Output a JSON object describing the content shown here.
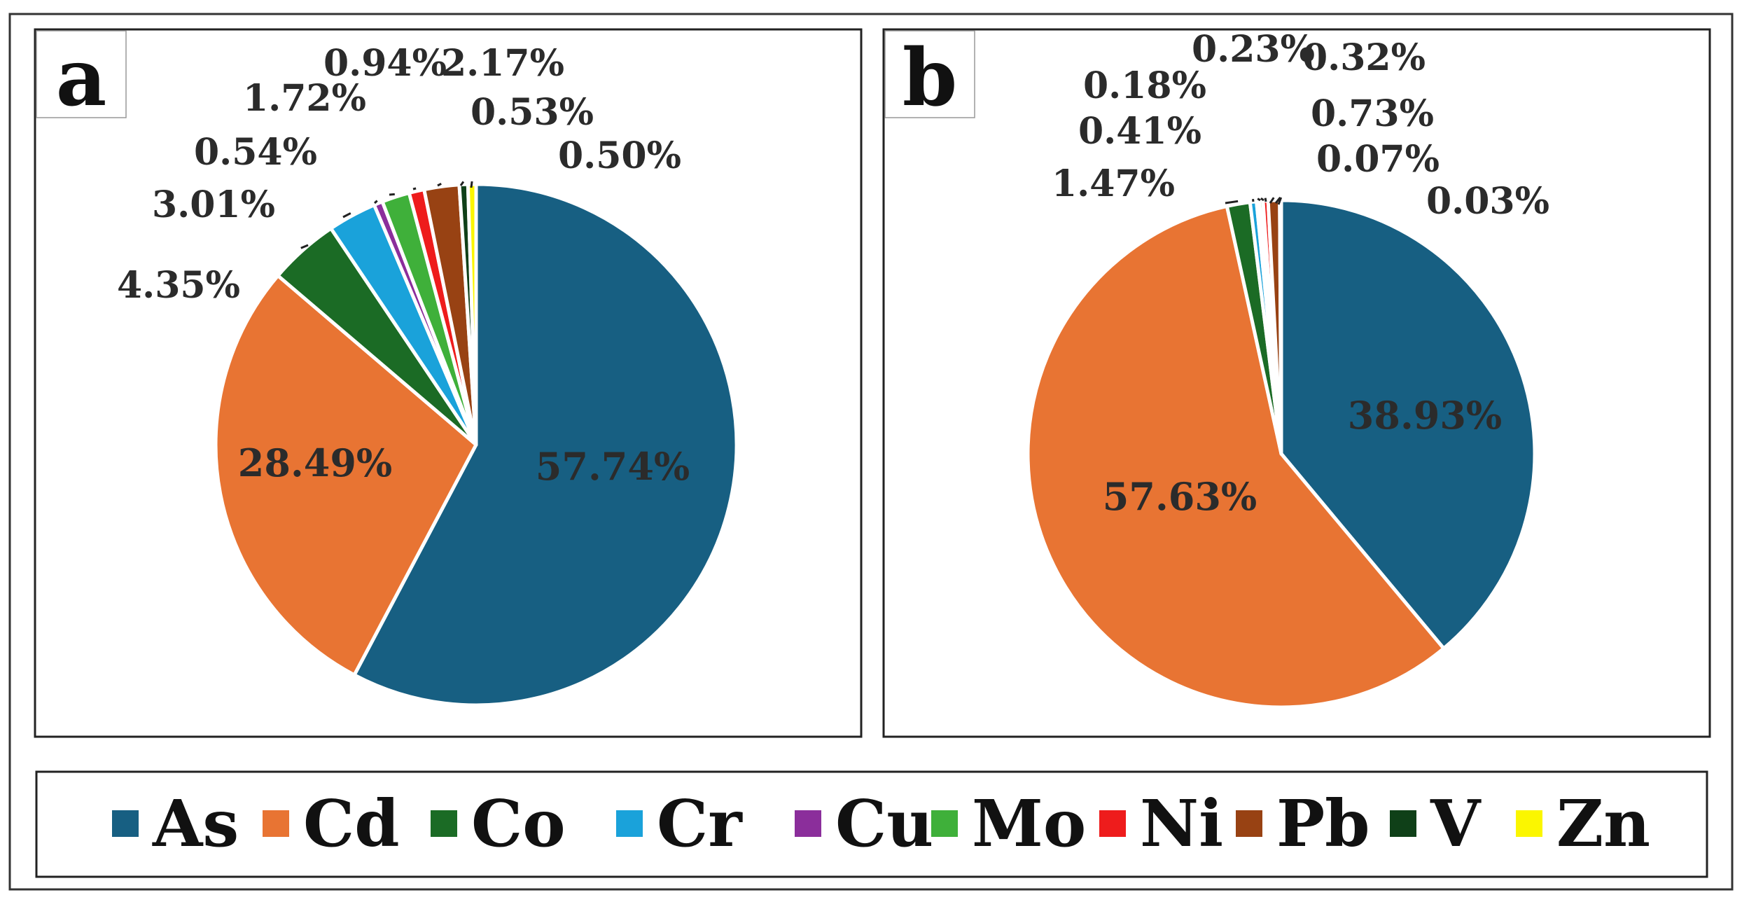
{
  "chart_data": [
    {
      "type": "pie",
      "panel_label": "a",
      "categories": [
        "As",
        "Cd",
        "Co",
        "Cr",
        "Cu",
        "Mo",
        "Ni",
        "Pb",
        "V",
        "Zn"
      ],
      "values": [
        57.74,
        28.49,
        4.35,
        3.01,
        0.54,
        1.72,
        0.94,
        2.17,
        0.53,
        0.5
      ],
      "labels": [
        "57.74%",
        "28.49%",
        "4.35%",
        "3.01%",
        "0.54%",
        "1.72%",
        "0.94%",
        "2.17%",
        "0.53%",
        "0.50%"
      ]
    },
    {
      "type": "pie",
      "panel_label": "b",
      "categories": [
        "As",
        "Cd",
        "Co",
        "Cr",
        "Cu",
        "Mo",
        "Ni",
        "Pb",
        "V",
        "Zn"
      ],
      "values": [
        38.93,
        57.63,
        1.47,
        0.41,
        0.18,
        0.23,
        0.32,
        0.73,
        0.07,
        0.03
      ],
      "labels": [
        "38.93%",
        "57.63%",
        "1.47%",
        "0.41%",
        "0.18%",
        "0.23%",
        "0.32%",
        "0.73%",
        "0.07%",
        "0.03%"
      ]
    }
  ],
  "legend": {
    "items": [
      "As",
      "Cd",
      "Co",
      "Cr",
      "Cu",
      "Mo",
      "Ni",
      "Pb",
      "V",
      "Zn"
    ],
    "colors": [
      "#175f82",
      "#e87433",
      "#1b6b25",
      "#1aa2da",
      "#8b2e9b",
      "#3fb03a",
      "#ee1c1c",
      "#984213",
      "#0f4018",
      "#fbf600"
    ]
  }
}
